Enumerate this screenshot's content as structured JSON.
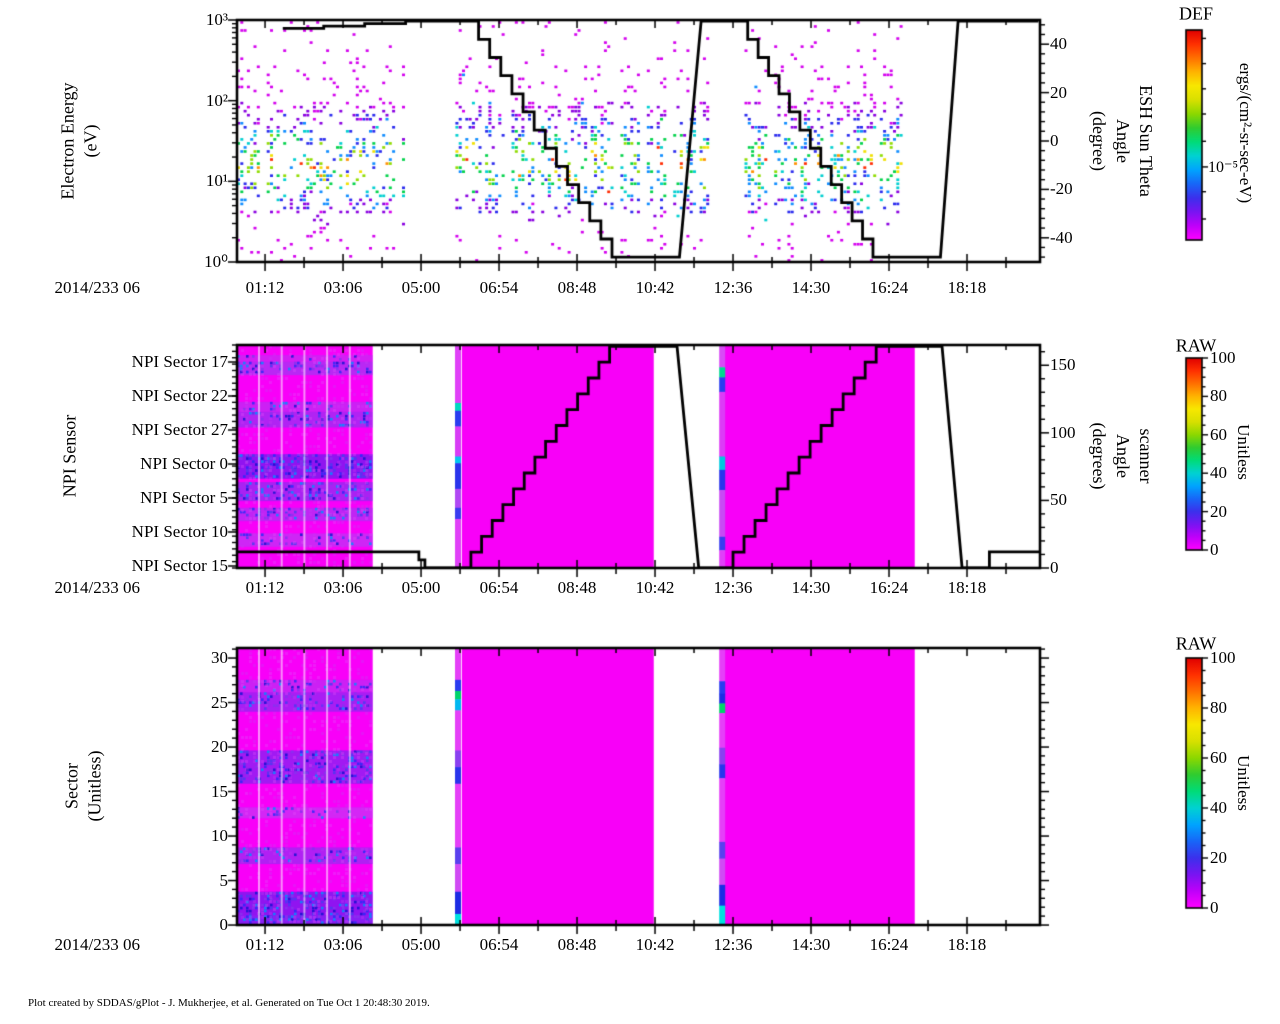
{
  "footer": {
    "credit": "Plot created by SDDAS/gPlot - J. Mukherjee, et al.  Generated on Tue Oct 1 20:48:30 2019."
  },
  "time_axis": {
    "date_label": "2014/233 06",
    "tick_labels": [
      "01:12",
      "03:06",
      "05:00",
      "06:54",
      "08:48",
      "10:42",
      "12:36",
      "14:30",
      "16:24",
      "18:18"
    ],
    "first_tick_frac": 0.03487,
    "tick_step_frac": 0.09713
  },
  "colors": {
    "background": "#ffffff",
    "axis": "#000000",
    "overlay_line": "#000000",
    "heat_base": "#f800f8",
    "rainbow_stops_bottom_to_top": [
      "#ff00ff",
      "#c000fa",
      "#7a14f2",
      "#3c30ec",
      "#1866f8",
      "#00a4ff",
      "#00d2d2",
      "#00dc78",
      "#30cc30",
      "#8cd800",
      "#d8e000",
      "#f8e800",
      "#ffb400",
      "#ff7000",
      "#ff3000",
      "#e00000"
    ],
    "scatter_palette_low_to_high": [
      "#d400ee",
      "#8a00e0",
      "#2a2aee",
      "#0f8cff",
      "#00cfd0",
      "#00d24a",
      "#8fdc00",
      "#f0e000",
      "#ff9000",
      "#ff2a00"
    ],
    "speckle_colors": [
      "#1212d0",
      "#2a2af8",
      "#4a3cf0",
      "#8833ee",
      "#0090ff"
    ]
  },
  "chart_data": [
    {
      "panel": "electron-energy-spectrogram",
      "type": "scatter",
      "ylabel_lines": [
        "Electron Energy",
        "(eV)"
      ],
      "y_scale": "log",
      "ylim": [
        1,
        1000
      ],
      "y_tick_labels": [
        "10³",
        "10²",
        "10¹",
        "10⁰"
      ],
      "y_tick_exponents": [
        3,
        2,
        1,
        0
      ],
      "right_axis": {
        "label_lines": [
          "ESH Sun Theta",
          "Angle",
          "(degree)"
        ],
        "lim": [
          -50,
          50
        ],
        "tick_values": [
          40,
          20,
          0,
          -20,
          -40
        ],
        "minor_step": 4
      },
      "colorbar": {
        "title": "DEF",
        "unit": "ergs/(cm²-sr-sec-eV)",
        "labeled_tick": "10⁻⁵",
        "labeled_tick_frac_from_top": 0.652,
        "tick_fracs_from_top": [
          0.04,
          0.16,
          0.28,
          0.4,
          0.53,
          0.652,
          0.77,
          0.9
        ]
      },
      "scatter_regions": [
        {
          "x0": 0.0,
          "x1": 0.209
        },
        {
          "x0": 0.272,
          "x1": 0.586
        },
        {
          "x0": 0.632,
          "x1": 0.833
        }
      ],
      "energy_core_ev": [
        4,
        100
      ],
      "line_series": {
        "name": "ESH Sun Theta Angle",
        "units": "degree",
        "segments": [
          {
            "t": "stairs",
            "x0": 0.057,
            "x1": 0.21,
            "v0": 46.5,
            "v1": 49.5,
            "n": 3
          },
          {
            "t": "flat",
            "x0": 0.21,
            "x1": 0.287,
            "v": 49.5
          },
          {
            "t": "stairs",
            "x0": 0.287,
            "x1": 0.467,
            "v0": 49.5,
            "v1": -48,
            "n": 13
          },
          {
            "t": "flat",
            "x0": 0.467,
            "x1": 0.551,
            "v": -48
          },
          {
            "t": "ramp",
            "x0": 0.551,
            "x1": 0.578,
            "v0": -48,
            "v1": 49.5
          },
          {
            "t": "flat",
            "x0": 0.578,
            "x1": 0.623,
            "v": 49.5
          },
          {
            "t": "stairs",
            "x0": 0.623,
            "x1": 0.792,
            "v0": 49.5,
            "v1": -48,
            "n": 13
          },
          {
            "t": "flat",
            "x0": 0.792,
            "x1": 0.876,
            "v": -48
          },
          {
            "t": "ramp",
            "x0": 0.876,
            "x1": 0.898,
            "v0": -48,
            "v1": 49.5
          },
          {
            "t": "flat",
            "x0": 0.898,
            "x1": 0.998,
            "v": 49.5
          }
        ]
      }
    },
    {
      "panel": "npi-sensor-spectrogram",
      "type": "heatmap",
      "ylabel": "NPI Sensor",
      "y_tick_labels": [
        "NPI Sector 17",
        "NPI Sector 22",
        "NPI Sector 27",
        "NPI Sector 0",
        "NPI Sector 5",
        "NPI Sector 10",
        "NPI Sector 15"
      ],
      "n_rows": 35,
      "right_axis": {
        "label_lines": [
          "scanner",
          "Angle",
          "(degrees)"
        ],
        "lim": [
          0,
          165
        ],
        "tick_values": [
          150,
          100,
          50,
          0
        ],
        "minor_step": 10
      },
      "colorbar": {
        "title": "RAW",
        "unit": "Unitless",
        "tick_values": [
          100,
          80,
          60,
          40,
          20,
          0
        ],
        "lim": [
          0,
          100
        ],
        "minor_step": 5
      },
      "heat_blocks": [
        {
          "x0": 0.0,
          "x1": 0.169,
          "textured": true
        },
        {
          "x0": 0.28,
          "x1": 0.519,
          "textured": false
        },
        {
          "x0": 0.607,
          "x1": 0.844,
          "textured": false
        }
      ],
      "bands": [
        {
          "y0": 0.045,
          "y1": 0.075,
          "c": "#b03cf0",
          "d": 0.35
        },
        {
          "y0": 0.075,
          "y1": 0.135,
          "c": "#7a50f0",
          "d": 0.55
        },
        {
          "y0": 0.255,
          "y1": 0.3,
          "c": "#a040f0",
          "d": 0.45
        },
        {
          "y0": 0.3,
          "y1": 0.37,
          "c": "#6a46ee",
          "d": 0.6
        },
        {
          "y0": 0.49,
          "y1": 0.6,
          "c": "#2828e8",
          "d": 0.85
        },
        {
          "y0": 0.615,
          "y1": 0.7,
          "c": "#5a44ec",
          "d": 0.6
        },
        {
          "y0": 0.73,
          "y1": 0.79,
          "c": "#8a48f0",
          "d": 0.5
        },
        {
          "y0": 0.845,
          "y1": 0.905,
          "c": "#a44cf2",
          "d": 0.4
        }
      ],
      "strips": [
        {
          "x": 0.2715,
          "segments": [
            {
              "y0": 0.0,
              "y1": 0.26,
              "c": "#e040f8"
            },
            {
              "y0": 0.26,
              "y1": 0.295,
              "c": "#00d8c0"
            },
            {
              "y0": 0.295,
              "y1": 0.365,
              "c": "#2a3cf0"
            },
            {
              "y0": 0.365,
              "y1": 0.5,
              "c": "#d83cf6"
            },
            {
              "y0": 0.5,
              "y1": 0.53,
              "c": "#00c8f0"
            },
            {
              "y0": 0.53,
              "y1": 0.645,
              "c": "#2a34ec"
            },
            {
              "y0": 0.645,
              "y1": 0.73,
              "c": "#b048f4"
            },
            {
              "y0": 0.73,
              "y1": 0.78,
              "c": "#3a3cf0"
            },
            {
              "y0": 0.78,
              "y1": 1.0,
              "c": "#e040f8"
            }
          ]
        },
        {
          "x": 0.6005,
          "segments": [
            {
              "y0": 0.0,
              "y1": 0.1,
              "c": "#d84af6"
            },
            {
              "y0": 0.1,
              "y1": 0.145,
              "c": "#00d890"
            },
            {
              "y0": 0.145,
              "y1": 0.21,
              "c": "#2a3cf0"
            },
            {
              "y0": 0.21,
              "y1": 0.5,
              "c": "#dc3cf6"
            },
            {
              "y0": 0.5,
              "y1": 0.56,
              "c": "#00c8e0"
            },
            {
              "y0": 0.56,
              "y1": 0.65,
              "c": "#2a34ec"
            },
            {
              "y0": 0.65,
              "y1": 0.86,
              "c": "#c84af4"
            },
            {
              "y0": 0.86,
              "y1": 0.92,
              "c": "#3a3cf0"
            },
            {
              "y0": 0.92,
              "y1": 1.0,
              "c": "#e040f8"
            }
          ]
        }
      ],
      "line_series": {
        "name": "scanner Angle",
        "units": "degrees",
        "segments": [
          {
            "t": "flat",
            "x0": 0.0,
            "x1": 0.219,
            "v": 12
          },
          {
            "t": "stairs",
            "x0": 0.219,
            "x1": 0.234,
            "v0": 12,
            "v1": 0,
            "n": 2
          },
          {
            "t": "flat",
            "x0": 0.234,
            "x1": 0.278,
            "v": 0
          },
          {
            "t": "stairs",
            "x0": 0.278,
            "x1": 0.464,
            "v0": 0,
            "v1": 164,
            "n": 14
          },
          {
            "t": "flat",
            "x0": 0.464,
            "x1": 0.548,
            "v": 164
          },
          {
            "t": "ramp",
            "x0": 0.548,
            "x1": 0.575,
            "v0": 164,
            "v1": 0
          },
          {
            "t": "flat",
            "x0": 0.575,
            "x1": 0.604,
            "v": 0
          },
          {
            "t": "stairs",
            "x0": 0.604,
            "x1": 0.796,
            "v0": 0,
            "v1": 164,
            "n": 14
          },
          {
            "t": "flat",
            "x0": 0.796,
            "x1": 0.878,
            "v": 164
          },
          {
            "t": "ramp",
            "x0": 0.878,
            "x1": 0.903,
            "v0": 164,
            "v1": 0
          },
          {
            "t": "flat",
            "x0": 0.903,
            "x1": 0.929,
            "v": 0
          },
          {
            "t": "stairs",
            "x0": 0.929,
            "x1": 0.937,
            "v0": 0,
            "v1": 12,
            "n": 1
          },
          {
            "t": "flat",
            "x0": 0.937,
            "x1": 1.0,
            "v": 12
          }
        ]
      }
    },
    {
      "panel": "sector-spectrogram",
      "type": "heatmap",
      "ylabel_lines": [
        "Sector",
        "(Unitless)"
      ],
      "ylim": [
        0,
        31
      ],
      "y_tick_values": [
        30,
        25,
        20,
        15,
        10,
        5,
        0
      ],
      "y_minor_step": 1,
      "colorbar": {
        "title": "RAW",
        "unit": "Unitless",
        "tick_values": [
          100,
          80,
          60,
          40,
          20,
          0
        ],
        "lim": [
          0,
          100
        ],
        "minor_step": 5
      },
      "heat_blocks": [
        {
          "x0": 0.0,
          "x1": 0.169,
          "textured": true
        },
        {
          "x0": 0.28,
          "x1": 0.519,
          "textured": false
        },
        {
          "x0": 0.607,
          "x1": 0.844,
          "textured": false
        }
      ],
      "bands": [
        {
          "y0": 0.115,
          "y1": 0.16,
          "c": "#a040f0",
          "d": 0.45
        },
        {
          "y0": 0.16,
          "y1": 0.23,
          "c": "#5a3cee",
          "d": 0.6
        },
        {
          "y0": 0.37,
          "y1": 0.49,
          "c": "#4a34ec",
          "d": 0.65
        },
        {
          "y0": 0.575,
          "y1": 0.615,
          "c": "#b04cf2",
          "d": 0.3
        },
        {
          "y0": 0.72,
          "y1": 0.78,
          "c": "#6a40ee",
          "d": 0.55
        },
        {
          "y0": 0.88,
          "y1": 0.965,
          "c": "#2828e8",
          "d": 0.85
        },
        {
          "y0": 0.965,
          "y1": 1.0,
          "c": "#1a3cf0",
          "d": 0.9
        }
      ],
      "strips": [
        {
          "x": 0.2715,
          "segments": [
            {
              "y0": 0.0,
              "y1": 0.115,
              "c": "#e53ff8"
            },
            {
              "y0": 0.115,
              "y1": 0.155,
              "c": "#2a3cf0"
            },
            {
              "y0": 0.155,
              "y1": 0.185,
              "c": "#00d46a"
            },
            {
              "y0": 0.185,
              "y1": 0.225,
              "c": "#00b8f0"
            },
            {
              "y0": 0.225,
              "y1": 0.37,
              "c": "#e53ff8"
            },
            {
              "y0": 0.37,
              "y1": 0.43,
              "c": "#8a40f0"
            },
            {
              "y0": 0.43,
              "y1": 0.49,
              "c": "#2a34ec"
            },
            {
              "y0": 0.49,
              "y1": 0.72,
              "c": "#e53ff8"
            },
            {
              "y0": 0.72,
              "y1": 0.78,
              "c": "#5a40ee"
            },
            {
              "y0": 0.78,
              "y1": 0.88,
              "c": "#d04af4"
            },
            {
              "y0": 0.88,
              "y1": 0.96,
              "c": "#1c2ce4"
            },
            {
              "y0": 0.96,
              "y1": 1.0,
              "c": "#00e0e0"
            }
          ]
        },
        {
          "x": 0.6005,
          "segments": [
            {
              "y0": 0.0,
              "y1": 0.12,
              "c": "#e53ff8"
            },
            {
              "y0": 0.12,
              "y1": 0.165,
              "c": "#2a3cf0"
            },
            {
              "y0": 0.165,
              "y1": 0.2,
              "c": "#1c2ce4"
            },
            {
              "y0": 0.2,
              "y1": 0.235,
              "c": "#00d46a"
            },
            {
              "y0": 0.235,
              "y1": 0.36,
              "c": "#e53ff8"
            },
            {
              "y0": 0.36,
              "y1": 0.42,
              "c": "#8a40f0"
            },
            {
              "y0": 0.42,
              "y1": 0.47,
              "c": "#2a34ec"
            },
            {
              "y0": 0.47,
              "y1": 0.7,
              "c": "#e53ff8"
            },
            {
              "y0": 0.7,
              "y1": 0.76,
              "c": "#5a40ee"
            },
            {
              "y0": 0.76,
              "y1": 0.855,
              "c": "#d04af4"
            },
            {
              "y0": 0.855,
              "y1": 0.93,
              "c": "#1c2ce4"
            },
            {
              "y0": 0.93,
              "y1": 1.0,
              "c": "#00e0e0"
            }
          ]
        }
      ]
    }
  ]
}
